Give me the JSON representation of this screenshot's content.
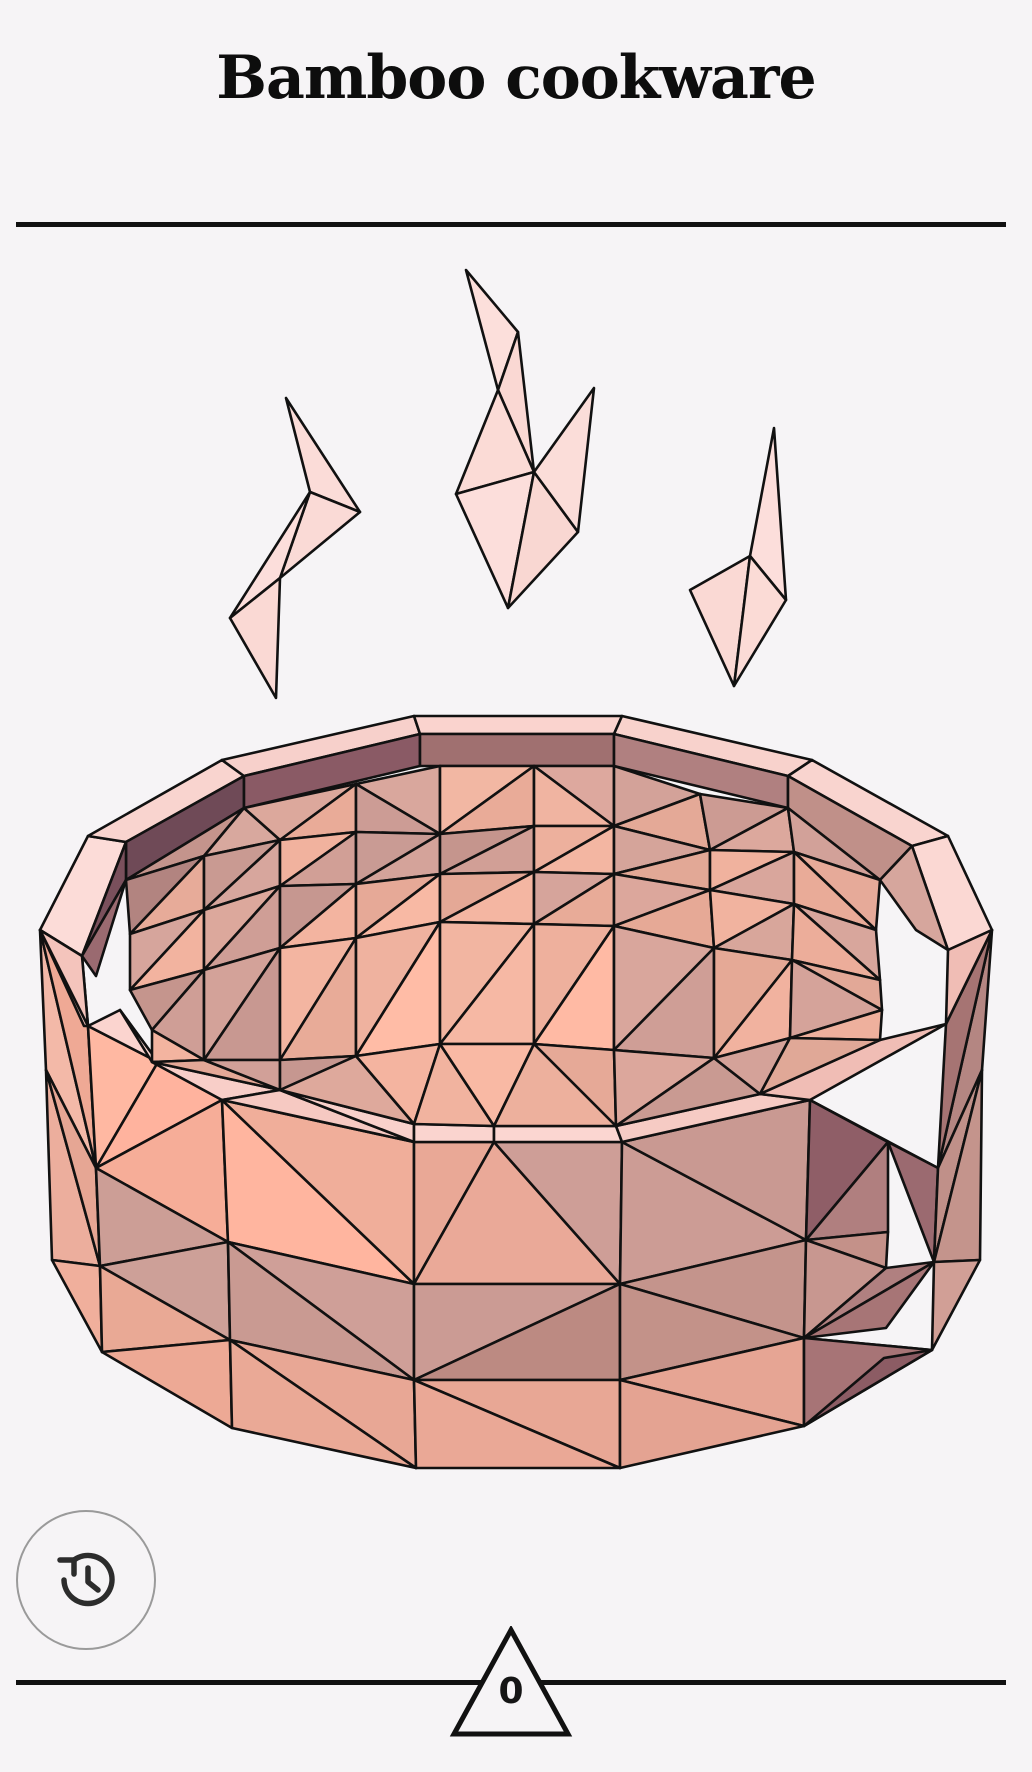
{
  "game": {
    "title": "Bamboo cookware",
    "score": "0"
  },
  "controls": {
    "history_icon": "history-icon",
    "score_icon": "triangle-badge-icon"
  },
  "colors": {
    "background": "#f6f4f6",
    "ink": "#111111",
    "light_facet": "#fadcd8",
    "salmon_facet": "#ffb7a0",
    "mid_facet": "#cfa098",
    "dark_facet": "#8c5c65"
  }
}
